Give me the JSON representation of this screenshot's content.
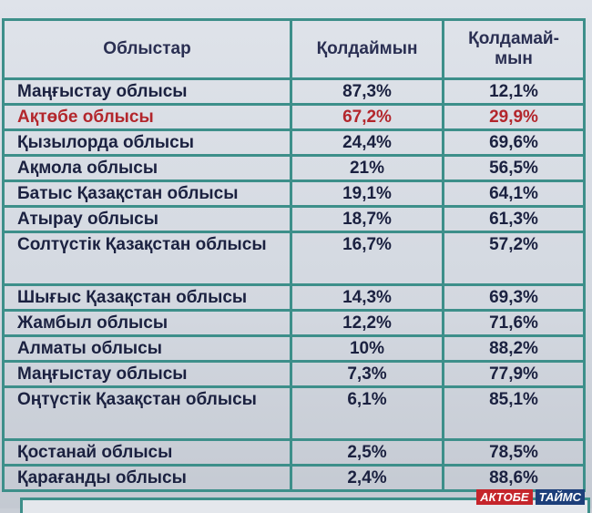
{
  "table": {
    "header": [
      "Облыстар",
      "Қолдаймын",
      "Қолдамай-\nмын"
    ],
    "rows": [
      [
        "Маңғыстау облысы",
        "87,3%",
        "12,1%"
      ],
      [
        "Ақтөбе облысы",
        "67,2%",
        "29,9%"
      ],
      [
        "Қызылорда облысы",
        "24,4%",
        "69,6%"
      ],
      [
        "Ақмола облысы",
        "21%",
        "56,5%"
      ],
      [
        "Батыс Қазақстан облысы",
        "19,1%",
        "64,1%"
      ],
      [
        "Атырау облысы",
        "18,7%",
        "61,3%"
      ],
      [
        "Солтүстік Қазақстан облысы",
        "16,7%",
        "57,2%"
      ],
      [
        "Шығыс Қазақстан облысы",
        "14,3%",
        "69,3%"
      ],
      [
        "Жамбыл облысы",
        "12,2%",
        "71,6%"
      ],
      [
        "Алматы облысы",
        "10%",
        "88,2%"
      ],
      [
        "Маңғыстау облысы",
        "7,3%",
        "77,9%"
      ],
      [
        "Оңтүстік Қазақстан облысы",
        "6,1%",
        "85,1%"
      ],
      [
        "Қостанай облысы",
        "2,5%",
        "78,5%"
      ],
      [
        "Қарағанды облысы",
        "2,4%",
        "88,6%"
      ]
    ]
  },
  "watermark": {
    "part1": "АКТОБЕ",
    "part2": "ТАЙМС"
  }
}
